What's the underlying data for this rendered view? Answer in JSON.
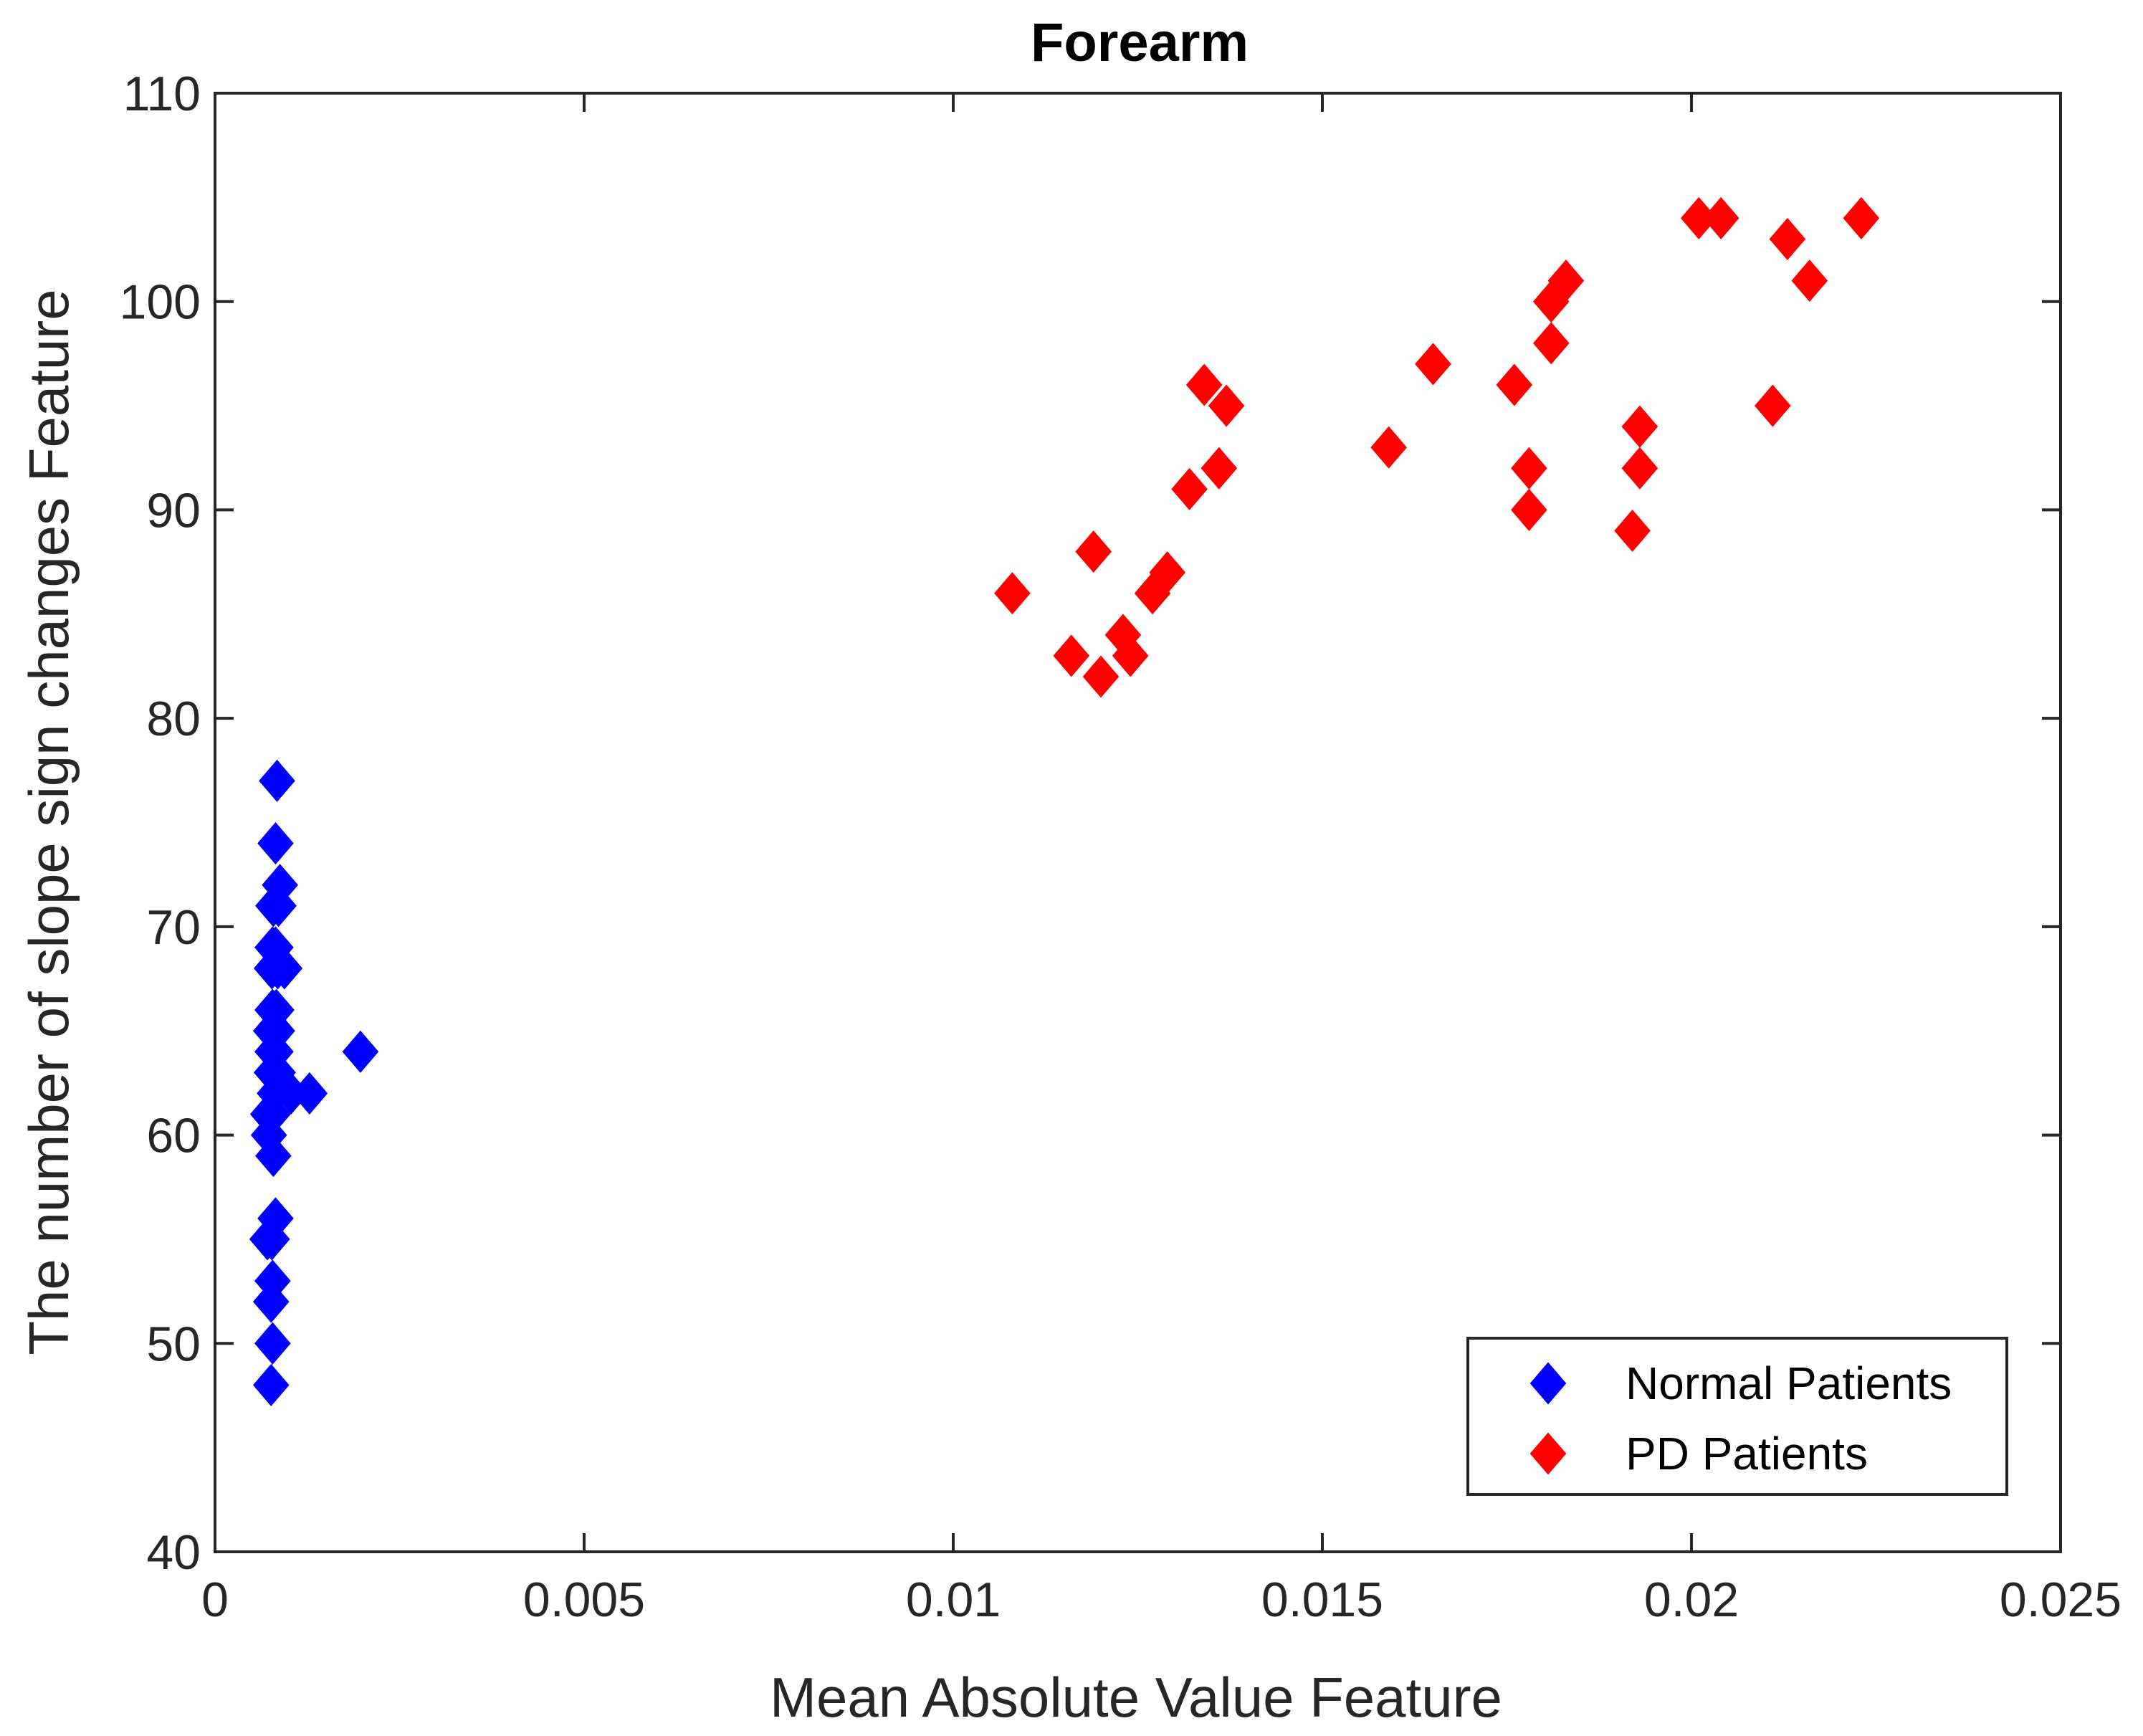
{
  "chart_data": {
    "type": "scatter",
    "title": "Forearm",
    "xlabel": "Mean Absolute Value Feature",
    "ylabel": "The number of slope sign changes Feature",
    "xlim": [
      0,
      0.025
    ],
    "ylim": [
      40,
      110
    ],
    "xticks": [
      0,
      0.005,
      0.01,
      0.015,
      0.02,
      0.025
    ],
    "xtick_labels": [
      "0",
      "0.005",
      "0.01",
      "0.015",
      "0.02",
      "0.025"
    ],
    "yticks": [
      40,
      50,
      60,
      70,
      80,
      90,
      100,
      110
    ],
    "ytick_labels": [
      "40",
      "50",
      "60",
      "70",
      "80",
      "90",
      "100",
      "110"
    ],
    "grid": false,
    "legend_position": "bottom-right",
    "marker": "diamond",
    "series": [
      {
        "name": "Normal Patients",
        "color": "#0000ff",
        "points": [
          [
            0.00084,
            77
          ],
          [
            0.00082,
            74
          ],
          [
            0.00088,
            72
          ],
          [
            0.00079,
            71
          ],
          [
            0.00086,
            71
          ],
          [
            0.00078,
            69
          ],
          [
            0.00082,
            69
          ],
          [
            0.00077,
            68
          ],
          [
            0.00094,
            68
          ],
          [
            0.00085,
            68
          ],
          [
            0.00078,
            66
          ],
          [
            0.00083,
            66
          ],
          [
            0.00076,
            65
          ],
          [
            0.00084,
            65
          ],
          [
            0.00078,
            64
          ],
          [
            0.00082,
            64
          ],
          [
            0.00077,
            63
          ],
          [
            0.00085,
            63
          ],
          [
            0.00081,
            62
          ],
          [
            0.00103,
            62
          ],
          [
            0.00128,
            62
          ],
          [
            0.00197,
            64
          ],
          [
            0.00072,
            61
          ],
          [
            0.00078,
            61
          ],
          [
            0.00073,
            60
          ],
          [
            0.00079,
            59
          ],
          [
            0.00082,
            56
          ],
          [
            0.00077,
            55
          ],
          [
            0.00071,
            55
          ],
          [
            0.00078,
            53
          ],
          [
            0.00076,
            52
          ],
          [
            0.00078,
            50
          ],
          [
            0.00076,
            48
          ]
        ]
      },
      {
        "name": "PD Patients",
        "color": "#ff0000",
        "points": [
          [
            0.0108,
            86
          ],
          [
            0.0116,
            83
          ],
          [
            0.0119,
            88
          ],
          [
            0.012,
            82
          ],
          [
            0.0123,
            84
          ],
          [
            0.0124,
            83
          ],
          [
            0.0127,
            86
          ],
          [
            0.0129,
            87
          ],
          [
            0.0132,
            91
          ],
          [
            0.0134,
            96
          ],
          [
            0.0136,
            92
          ],
          [
            0.0137,
            95
          ],
          [
            0.0159,
            93
          ],
          [
            0.0165,
            97
          ],
          [
            0.0176,
            96
          ],
          [
            0.0178,
            92
          ],
          [
            0.0178,
            90
          ],
          [
            0.0181,
            100
          ],
          [
            0.0181,
            98
          ],
          [
            0.0183,
            101
          ],
          [
            0.0192,
            89
          ],
          [
            0.0193,
            94
          ],
          [
            0.0193,
            92
          ],
          [
            0.0201,
            104
          ],
          [
            0.0204,
            104
          ],
          [
            0.0211,
            95
          ],
          [
            0.0213,
            103
          ],
          [
            0.0216,
            101
          ],
          [
            0.0223,
            104
          ]
        ]
      }
    ]
  }
}
